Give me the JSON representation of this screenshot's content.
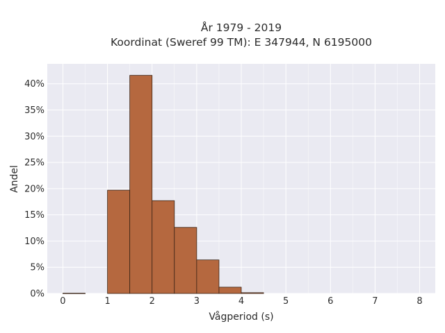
{
  "chart_data": {
    "type": "bar",
    "title_line1": "År 1979 - 2019",
    "title_line2": "Koordinat (Sweref 99 TM): E 347944, N 6195000",
    "xlabel": "Vågperiod (s)",
    "ylabel": "Andel",
    "bin_width": 0.5,
    "bins": [
      {
        "x0": 0.0,
        "x1": 0.5,
        "value": 0.0005
      },
      {
        "x0": 1.0,
        "x1": 1.5,
        "value": 0.197
      },
      {
        "x0": 1.5,
        "x1": 2.0,
        "value": 0.416
      },
      {
        "x0": 2.0,
        "x1": 2.5,
        "value": 0.177
      },
      {
        "x0": 2.5,
        "x1": 3.0,
        "value": 0.126
      },
      {
        "x0": 3.0,
        "x1": 3.5,
        "value": 0.064
      },
      {
        "x0": 3.5,
        "x1": 4.0,
        "value": 0.012
      },
      {
        "x0": 4.0,
        "x1": 4.5,
        "value": 0.0015
      }
    ],
    "xlim": [
      -0.35,
      8.35
    ],
    "ylim": [
      0,
      0.438
    ],
    "xticks": [
      0,
      1,
      2,
      3,
      4,
      5,
      6,
      7,
      8
    ],
    "xtick_labels": [
      "0",
      "1",
      "2",
      "3",
      "4",
      "5",
      "6",
      "7",
      "8"
    ],
    "yticks": [
      0,
      0.05,
      0.1,
      0.15,
      0.2,
      0.25,
      0.3,
      0.35,
      0.4
    ],
    "ytick_labels": [
      "0%",
      "5%",
      "10%",
      "15%",
      "20%",
      "25%",
      "30%",
      "35%",
      "40%"
    ],
    "grid": true,
    "colors": {
      "bar_fill": "#b5683f",
      "bar_stroke": "#3a2416",
      "plot_bg": "#eaeaf2",
      "grid": "#ffffff"
    }
  }
}
